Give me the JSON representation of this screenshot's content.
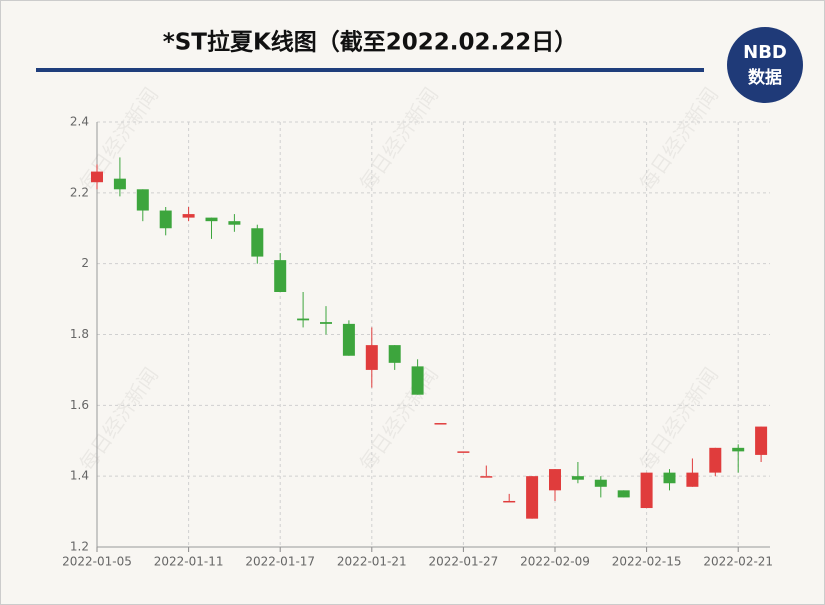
{
  "chart_data": {
    "type": "candlestick",
    "title": "*ST拉夏K线图（截至2022.02.22日）",
    "logo": {
      "top": "NBD",
      "bottom": "数据"
    },
    "watermark": "每日经济新闻",
    "categories": [
      "2022-01-05",
      null,
      null,
      null,
      "2022-01-11",
      null,
      null,
      null,
      "2022-01-17",
      null,
      null,
      null,
      "2022-01-21",
      null,
      null,
      null,
      "2022-01-27",
      null,
      null,
      null,
      "2022-02-09",
      null,
      null,
      null,
      "2022-02-15",
      null,
      null,
      null,
      "2022-02-21",
      null
    ],
    "open": [
      2.23,
      2.24,
      2.21,
      2.15,
      2.13,
      2.13,
      2.12,
      2.1,
      2.01,
      1.845,
      1.835,
      1.83,
      1.7,
      1.77,
      1.71,
      1.55,
      1.47,
      1.4,
      1.33,
      1.28,
      1.36,
      1.4,
      1.39,
      1.36,
      1.31,
      1.41,
      1.37,
      1.41,
      1.48,
      1.46
    ],
    "high": [
      2.28,
      2.3,
      2.21,
      2.16,
      2.16,
      2.13,
      2.14,
      2.11,
      2.03,
      1.92,
      1.88,
      1.84,
      1.82,
      1.77,
      1.73,
      1.55,
      1.47,
      1.43,
      1.35,
      1.4,
      1.42,
      1.44,
      1.4,
      1.36,
      1.41,
      1.42,
      1.45,
      1.48,
      1.49,
      1.54
    ],
    "low": [
      2.21,
      2.19,
      2.12,
      2.08,
      2.12,
      2.07,
      2.09,
      2.0,
      1.92,
      1.82,
      1.8,
      1.74,
      1.65,
      1.7,
      1.63,
      1.55,
      1.47,
      1.4,
      1.33,
      1.28,
      1.33,
      1.38,
      1.34,
      1.34,
      1.31,
      1.36,
      1.37,
      1.4,
      1.41,
      1.44
    ],
    "close": [
      2.26,
      2.21,
      2.15,
      2.1,
      2.14,
      2.12,
      2.11,
      2.02,
      1.92,
      1.84,
      1.83,
      1.74,
      1.77,
      1.72,
      1.63,
      1.55,
      1.47,
      1.4,
      1.33,
      1.4,
      1.42,
      1.39,
      1.37,
      1.34,
      1.41,
      1.38,
      1.41,
      1.48,
      1.47,
      1.54
    ],
    "up_color": "#e03c3c",
    "down_color": "#3da53d",
    "ylim": [
      1.2,
      2.4
    ],
    "yticks": [
      1.2,
      1.4,
      1.6,
      1.8,
      2,
      2.2,
      2.4
    ],
    "grid": true
  }
}
